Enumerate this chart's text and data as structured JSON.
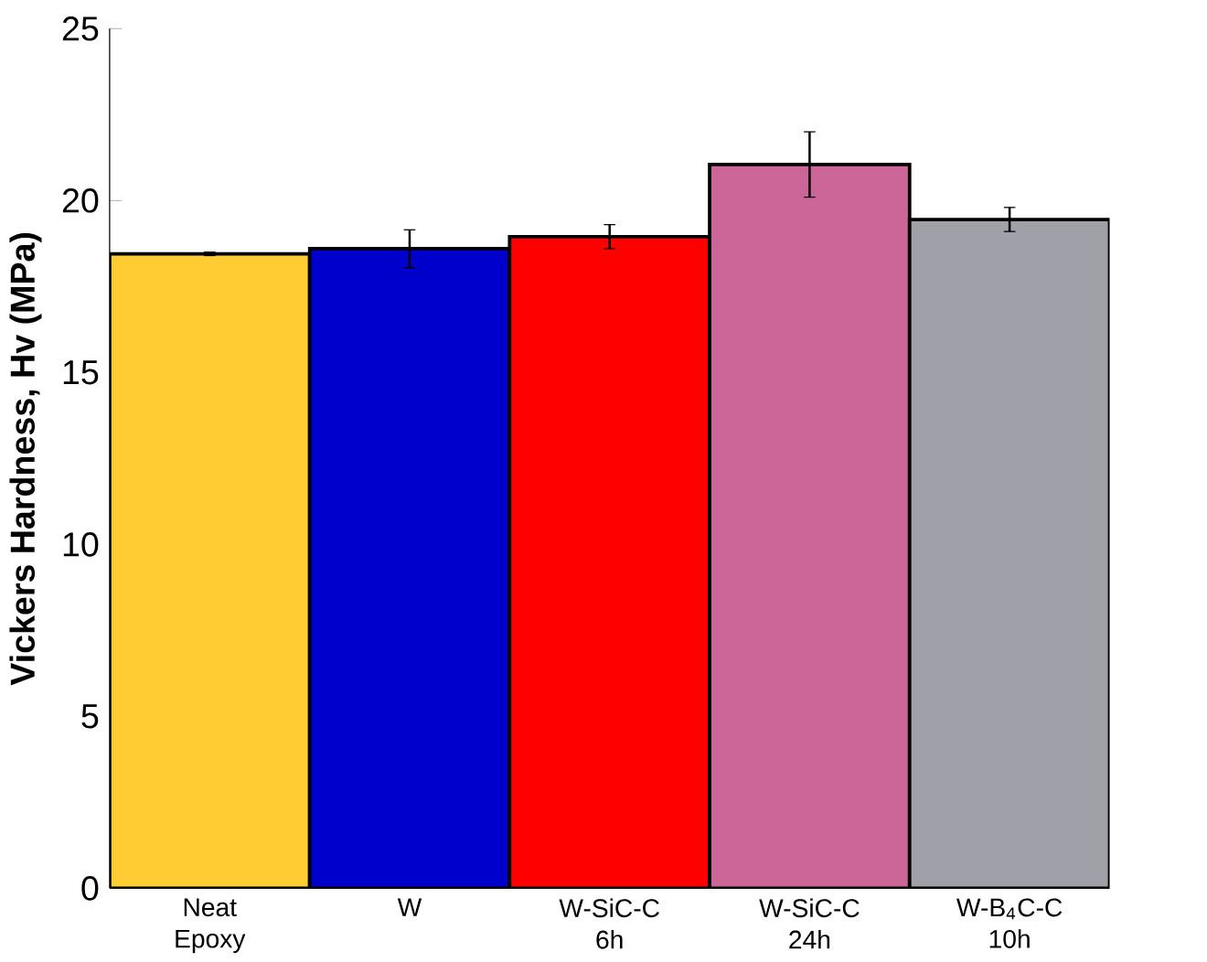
{
  "chart_data": {
    "type": "bar",
    "ylabel": "Vickers Hardness, Hv (MPa)",
    "categories": [
      "Neat Epoxy",
      "W",
      "W-SiC-C 6h",
      "W-SiC-C 24h",
      "W-B$_{4}$C-C 10h"
    ],
    "values": [
      18.45,
      18.6,
      18.95,
      21.05,
      19.45
    ],
    "errors": [
      0.05,
      0.55,
      0.35,
      0.95,
      0.35
    ],
    "colors": [
      "#ffcc33",
      "#0000cc",
      "#ff0000",
      "#cc6699",
      "#a0a0a8"
    ],
    "ylim": [
      0,
      25
    ],
    "yticks": [
      0,
      5,
      10,
      15,
      20,
      25
    ],
    "grid": false
  }
}
